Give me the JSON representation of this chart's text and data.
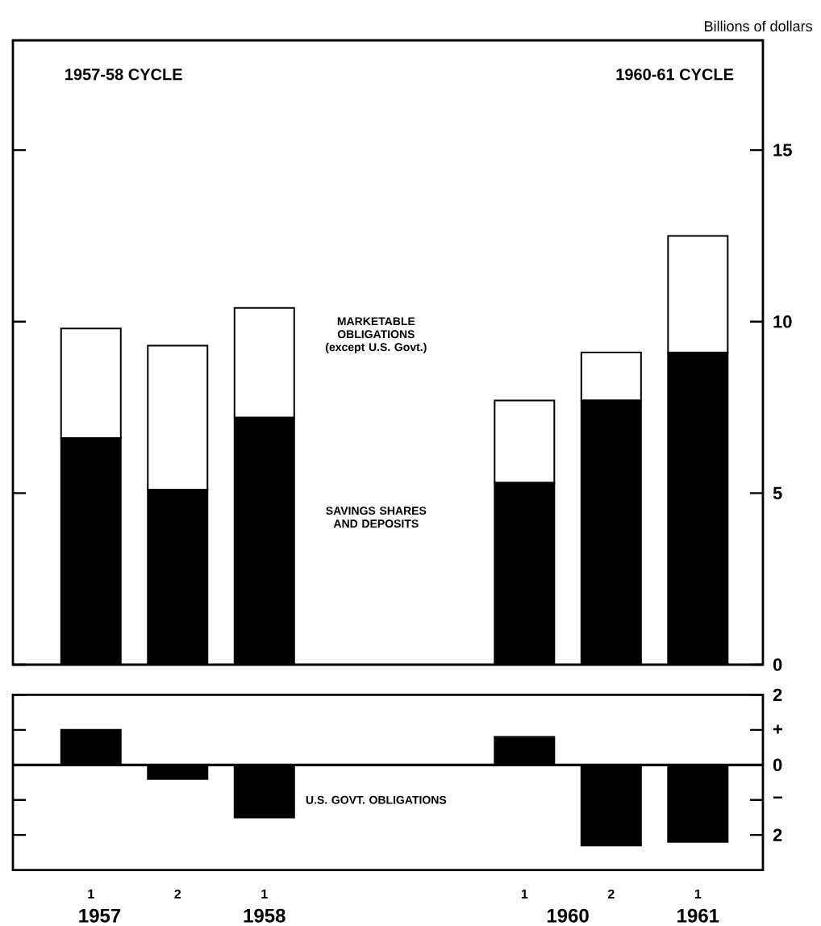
{
  "chart_data": [
    {
      "type": "bar",
      "stacked": true,
      "categories": [
        "1",
        "2",
        "1",
        null,
        null,
        "1",
        "2",
        "1"
      ],
      "tick_labels": "y",
      "ylabel": "Billions of dollars",
      "ylim": [
        0,
        18.2
      ],
      "yticks": [
        0,
        5,
        10,
        15
      ],
      "annotations": [
        "1957-58 CYCLE",
        "1960-61 CYCLE"
      ],
      "series": [
        {
          "name": "SAVINGS SHARES AND DEPOSITS",
          "color": "#000000",
          "values": [
            6.6,
            5.1,
            7.2,
            null,
            null,
            5.3,
            7.7,
            9.1
          ]
        },
        {
          "name": "MARKETABLE OBLIGATIONS (except U.S. Govt.)",
          "color": "#ffffff",
          "values": [
            3.2,
            4.2,
            3.2,
            null,
            null,
            2.4,
            1.4,
            3.4
          ]
        }
      ]
    },
    {
      "type": "bar",
      "categories": [
        "1",
        "2",
        "1",
        null,
        null,
        "1",
        "2",
        "1"
      ],
      "ylim": [
        -3,
        2
      ],
      "yticks": [
        2,
        {
          "value": 1,
          "label": "+"
        },
        0,
        {
          "value": -1,
          "label": "−"
        },
        {
          "value": -2,
          "label": "2"
        }
      ],
      "annotations": [
        "1957",
        "1958",
        "1960",
        "1961"
      ],
      "series": [
        {
          "name": "U.S. GOVT. OBLIGATIONS",
          "color": "#000000",
          "values": [
            1.0,
            -0.4,
            -1.5,
            null,
            null,
            0.8,
            -2.3,
            -2.2
          ]
        }
      ]
    }
  ]
}
